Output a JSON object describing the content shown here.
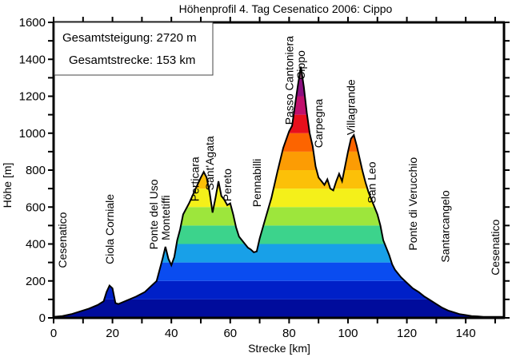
{
  "chart_data": {
    "type": "area",
    "title": "Höhenprofil  4. Tag Cesenatico 2006: Cippo",
    "xlabel": "Strecke [km]",
    "ylabel": "Höhe [m]",
    "xlim": [
      0,
      153
    ],
    "ylim": [
      0,
      1600
    ],
    "x_ticks": [
      0,
      20,
      40,
      60,
      80,
      100,
      120,
      140
    ],
    "y_ticks": [
      0,
      200,
      400,
      600,
      800,
      1000,
      1200,
      1400,
      1600
    ],
    "grid": false,
    "info_box": {
      "gain_label": "Gesamtsteigung: 2720 m",
      "distance_label": "Gesamtstrecke: 153 km",
      "placement": "top-left"
    },
    "color_bands": [
      {
        "from": 0,
        "to": 100,
        "color": "#000c9c"
      },
      {
        "from": 100,
        "to": 200,
        "color": "#0020c8"
      },
      {
        "from": 200,
        "to": 300,
        "color": "#0a4cf0"
      },
      {
        "from": 300,
        "to": 400,
        "color": "#18a0e8"
      },
      {
        "from": 400,
        "to": 500,
        "color": "#3cd38c"
      },
      {
        "from": 500,
        "to": 600,
        "color": "#9de63c"
      },
      {
        "from": 600,
        "to": 700,
        "color": "#f4f01a"
      },
      {
        "from": 700,
        "to": 800,
        "color": "#fcc008"
      },
      {
        "from": 800,
        "to": 900,
        "color": "#fc9c04"
      },
      {
        "from": 900,
        "to": 1000,
        "color": "#fc6400"
      },
      {
        "from": 1000,
        "to": 1100,
        "color": "#e8101c"
      },
      {
        "from": 1100,
        "to": 1200,
        "color": "#c0106c"
      },
      {
        "from": 1200,
        "to": 1300,
        "color": "#8c1080"
      },
      {
        "from": 1300,
        "to": 1400,
        "color": "#7c4a60"
      }
    ],
    "profile": {
      "x": [
        0,
        3,
        6,
        9,
        12,
        15,
        17,
        18,
        19,
        20,
        21,
        22,
        25,
        28,
        31,
        33,
        35,
        36,
        37,
        38,
        39,
        40,
        41,
        42,
        43,
        44,
        46,
        48,
        50,
        51,
        52,
        53,
        54,
        55,
        56,
        57,
        58,
        59,
        60,
        61,
        62,
        63,
        64,
        65,
        66,
        67,
        68,
        69,
        70,
        72,
        74,
        76,
        78,
        80,
        81,
        82,
        83,
        84,
        85,
        86,
        87,
        88,
        89,
        90,
        91,
        92,
        93,
        94,
        95,
        96,
        97,
        98,
        99,
        100,
        101,
        102,
        103,
        104,
        105,
        106,
        107,
        108,
        109,
        110,
        111,
        112,
        113,
        114,
        115,
        116,
        118,
        120,
        122,
        124,
        126,
        128,
        130,
        132,
        134,
        136,
        138,
        140,
        142,
        144,
        146,
        148,
        150,
        152,
        153
      ],
      "y": [
        5,
        10,
        20,
        35,
        50,
        70,
        90,
        140,
        175,
        160,
        80,
        75,
        95,
        115,
        140,
        170,
        200,
        260,
        320,
        385,
        320,
        285,
        330,
        420,
        480,
        560,
        620,
        690,
        760,
        790,
        760,
        680,
        570,
        650,
        740,
        660,
        640,
        610,
        620,
        560,
        490,
        440,
        420,
        400,
        380,
        370,
        355,
        360,
        430,
        540,
        650,
        790,
        920,
        1010,
        1040,
        1150,
        1260,
        1360,
        1250,
        1110,
        1000,
        930,
        820,
        760,
        740,
        720,
        750,
        700,
        690,
        740,
        780,
        740,
        820,
        900,
        970,
        990,
        930,
        860,
        790,
        730,
        680,
        640,
        600,
        560,
        500,
        420,
        380,
        340,
        290,
        260,
        220,
        190,
        160,
        140,
        115,
        95,
        75,
        55,
        40,
        30,
        20,
        15,
        10,
        8,
        5,
        5,
        5,
        5,
        5
      ]
    },
    "annotations": [
      {
        "label": "Cesenatico",
        "x": 3
      },
      {
        "label": "Ciola Corniale",
        "x": 19
      },
      {
        "label": "Ponte del Uso",
        "x": 34
      },
      {
        "label": "Montetiffi",
        "x": 38
      },
      {
        "label": "Perticara",
        "x": 48
      },
      {
        "label": "Sant'Agata",
        "x": 53
      },
      {
        "label": "Pereto",
        "x": 59
      },
      {
        "label": "Pennabilli",
        "x": 69
      },
      {
        "label": "Passo Cantoniera",
        "x": 80
      },
      {
        "label": "Cippo",
        "x": 84
      },
      {
        "label": "Carpegna",
        "x": 90
      },
      {
        "label": "Villagrande",
        "x": 101
      },
      {
        "label": "San Leo",
        "x": 108
      },
      {
        "label": "Ponte di Verucchio",
        "x": 122
      },
      {
        "label": "Santarcangelo",
        "x": 133
      },
      {
        "label": "Cesenatico",
        "x": 150
      }
    ],
    "annotation_heights": [
      270,
      290,
      370,
      420,
      630,
      690,
      630,
      600,
      1045,
      1290,
      920,
      990,
      620,
      365,
      300,
      230
    ]
  }
}
